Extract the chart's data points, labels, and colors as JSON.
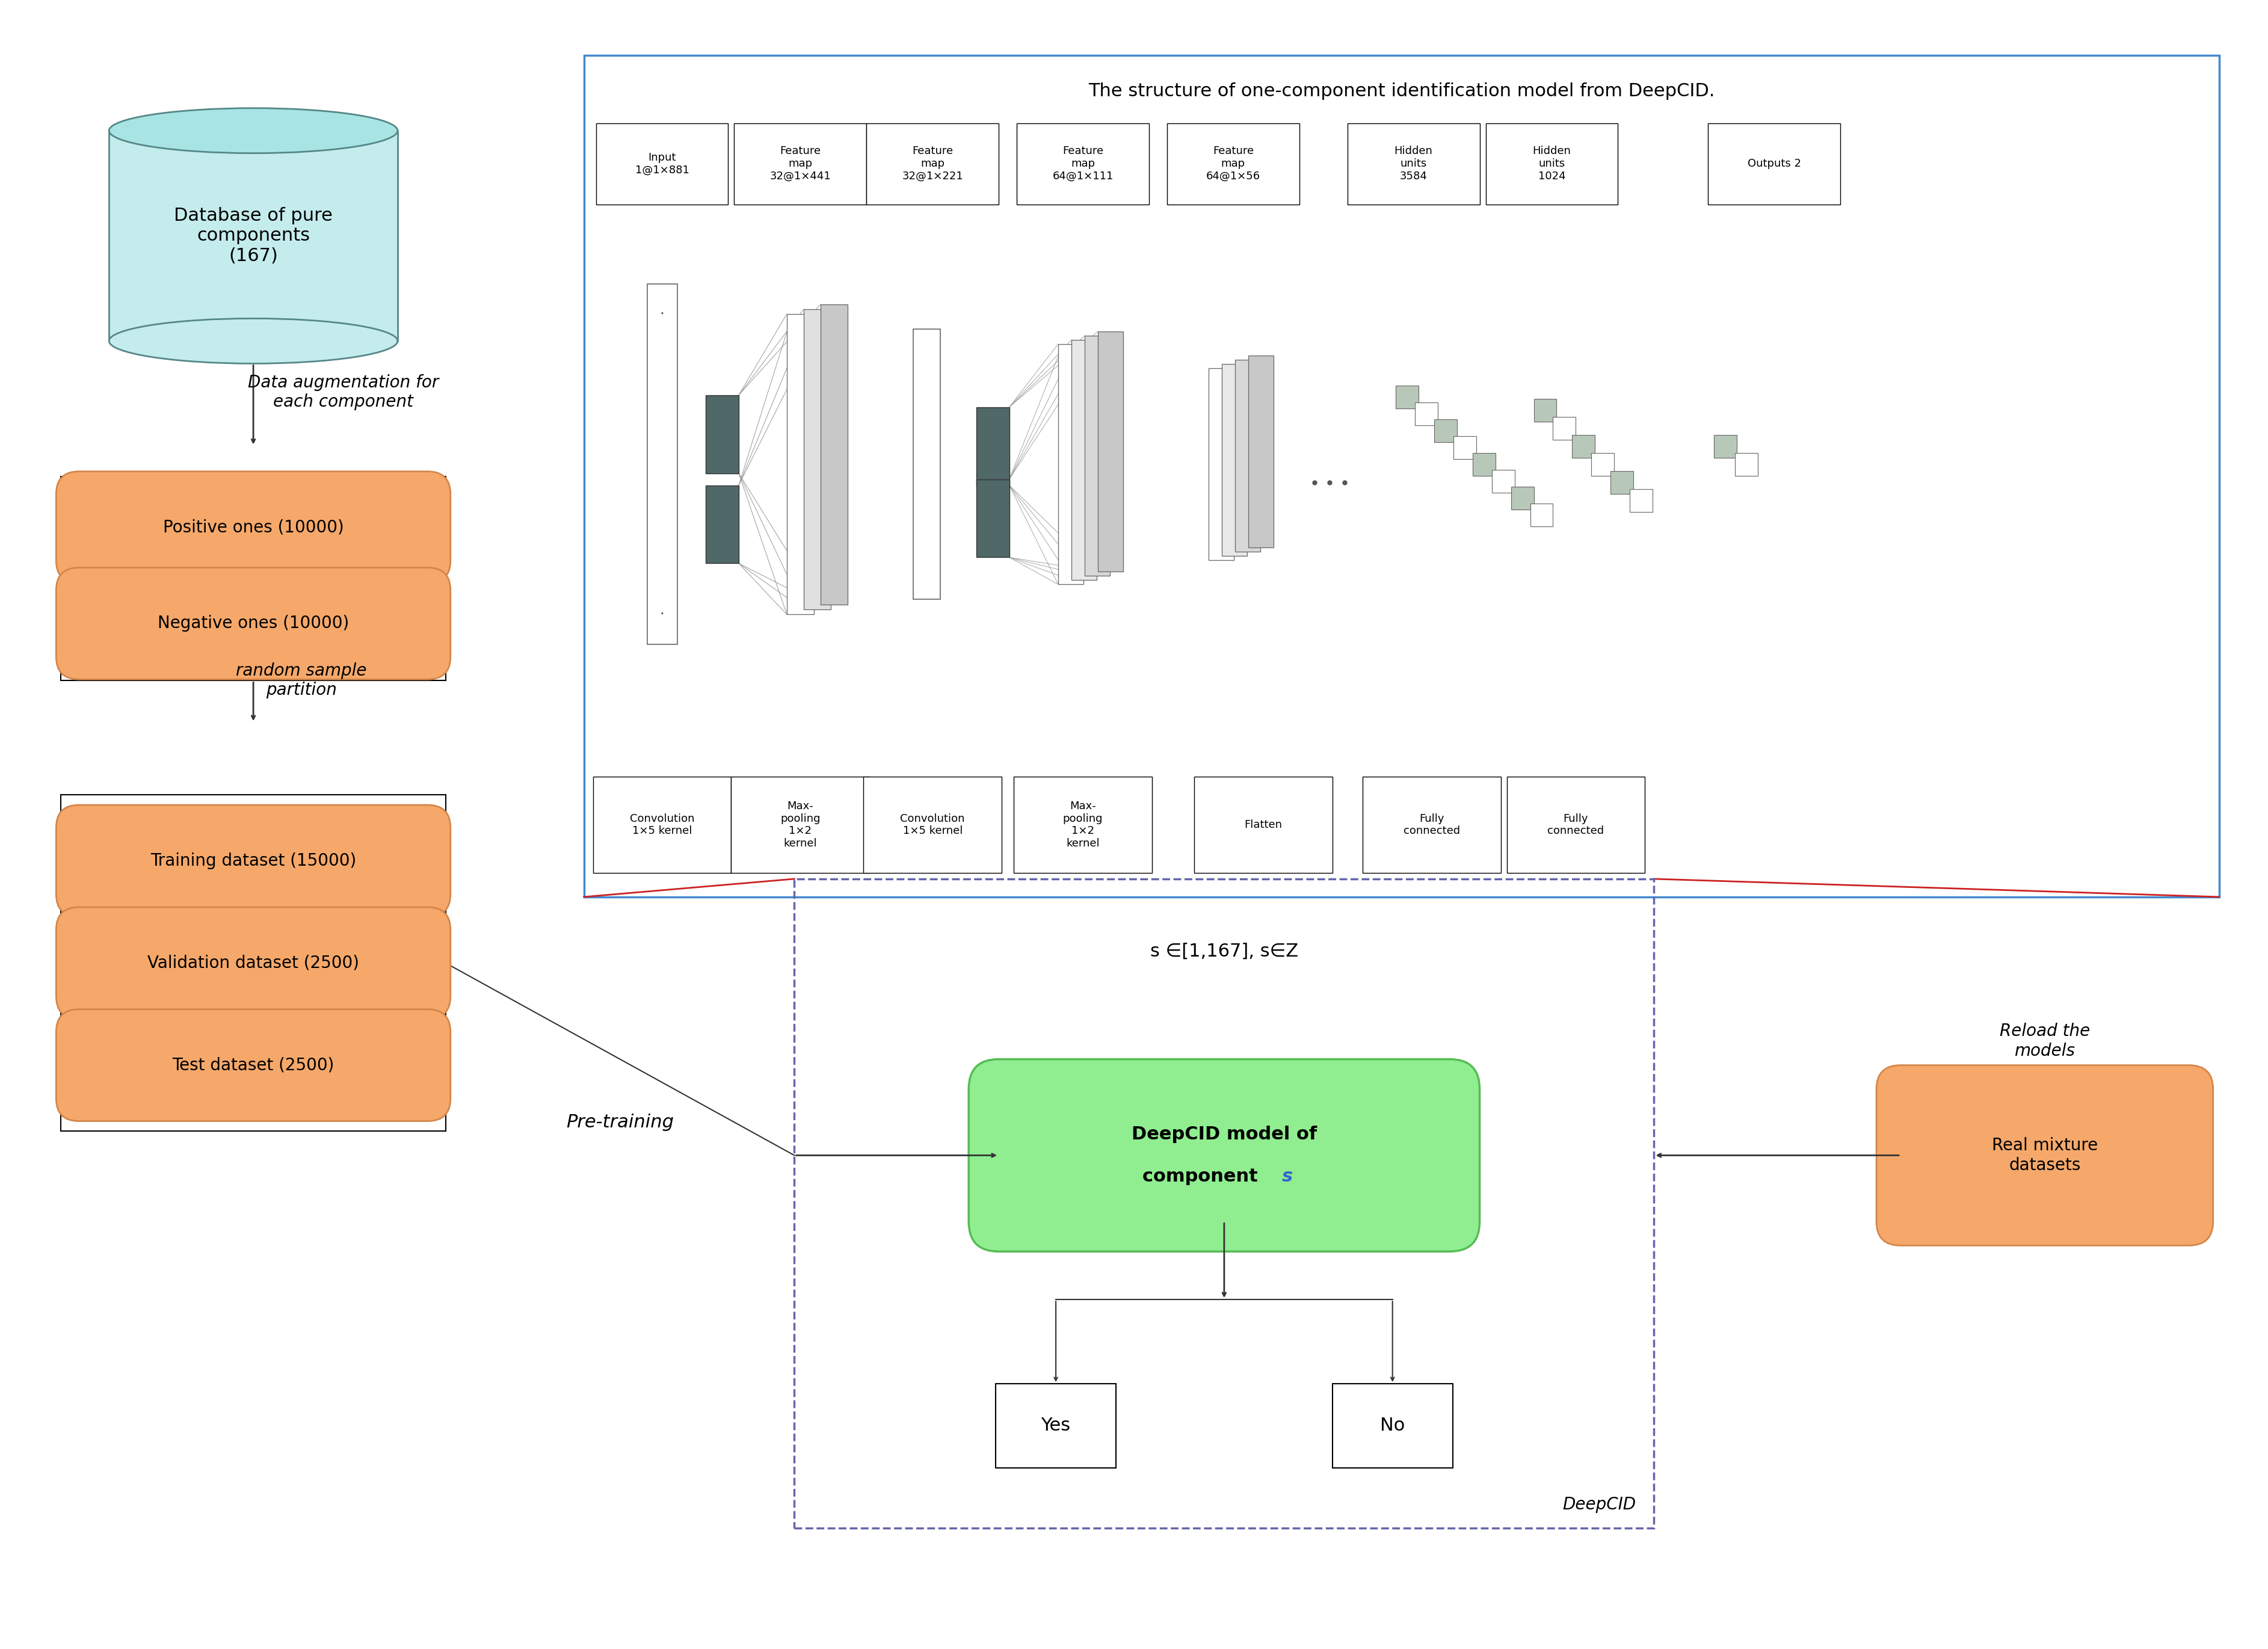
{
  "title": "The structure of one-component identification model from DeepCID.",
  "bg_color": "#ffffff",
  "db_text": "Database of pure\ncomponents\n(167)",
  "orange_color": "#f5a86a",
  "orange_border": "#d4864a",
  "green_color": "#90ee90",
  "green_border": "#55bb55",
  "dashed_border": "#6666aa",
  "blue_box_border": "#4488cc",
  "red_line_color": "#cc2222",
  "label1": "Data augmentation for\neach component",
  "label2": "random sample\npartition",
  "label3": "Pre-training",
  "label4": "Reload the\nmodels",
  "label5": "DeepCID",
  "label6": "s ∈[1,167], s∈Z",
  "pos_text": "Positive ones (10000)",
  "neg_text": "Negative ones (10000)",
  "train_text": "Training dataset (15000)",
  "val_text": "Validation dataset (2500)",
  "test_text": "Test dataset (2500)",
  "deepcid_line1": "DeepCID model of",
  "deepcid_line2": "component ",
  "deepcid_s": "s",
  "real_mix_text": "Real mixture\ndatasets",
  "yes_text": "Yes",
  "no_text": "No",
  "nn_labels_top": [
    "Input\n1@1×881",
    "Feature\nmap\n32@1×441",
    "Feature\nmap\n32@1×221",
    "Feature\nmap\n64@1×111",
    "Feature\nmap\n64@1×56",
    "Hidden\nunits\n3584",
    "Hidden\nunits\n1024",
    "Outputs 2"
  ],
  "nn_labels_bot": [
    "Convolution\n1×5 kernel",
    "Max-\npooling\n1×2\nkernel",
    "Convolution\n1×5 kernel",
    "Max-\npooling\n1×2\nkernel",
    "Flatten",
    "Fully\nconnected",
    "Fully\nconnected"
  ]
}
